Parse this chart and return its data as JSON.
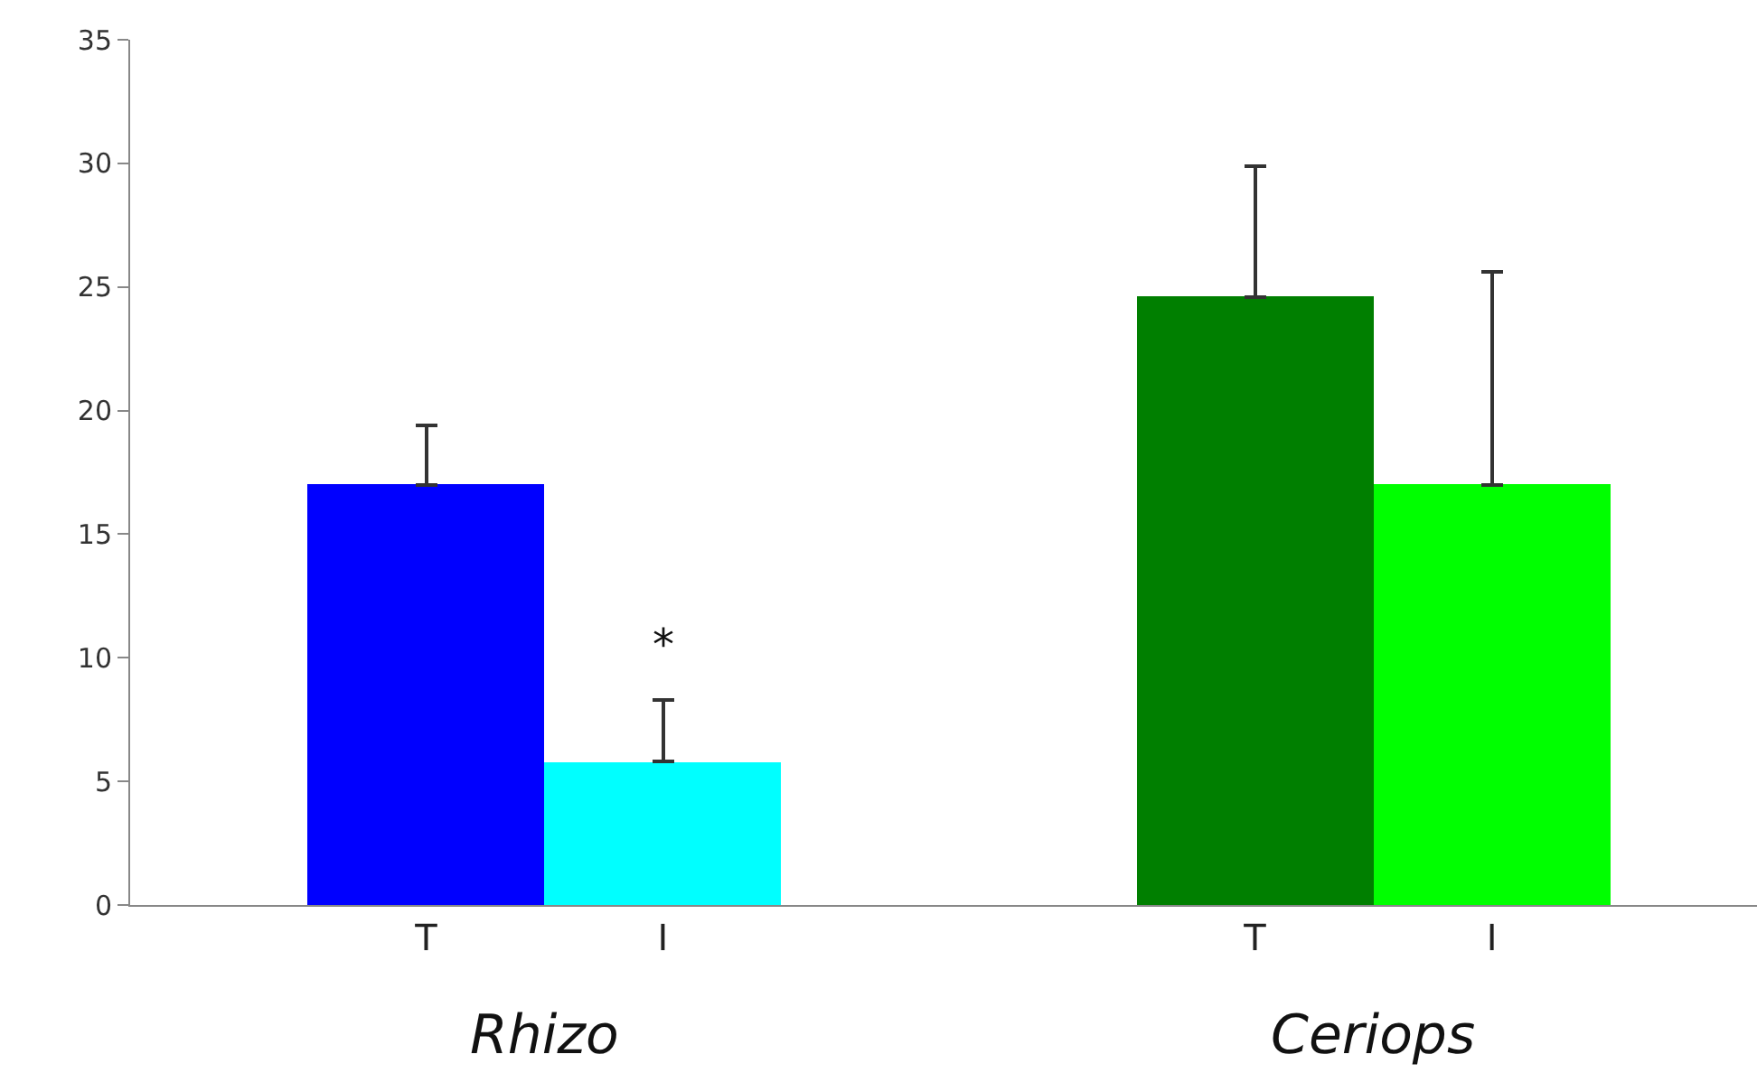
{
  "chart_data": {
    "type": "bar",
    "categories": [
      "T",
      "I",
      "T",
      "I"
    ],
    "values": [
      17,
      5.8,
      24.6,
      17
    ],
    "colors": [
      "#0000ff",
      "#00ffff",
      "#007f00",
      "#00ff00"
    ],
    "errors": [
      [
        17,
        19.4
      ],
      [
        5.8,
        8.3
      ],
      [
        24.6,
        29.9
      ],
      [
        17,
        25.6
      ]
    ],
    "ylim": [
      0,
      35
    ],
    "yticks": [
      0,
      5,
      10,
      15,
      20,
      25,
      30,
      35
    ],
    "grid": false,
    "legend": false,
    "annotations": [
      "Rhizo",
      "Ceriops",
      "*"
    ]
  }
}
